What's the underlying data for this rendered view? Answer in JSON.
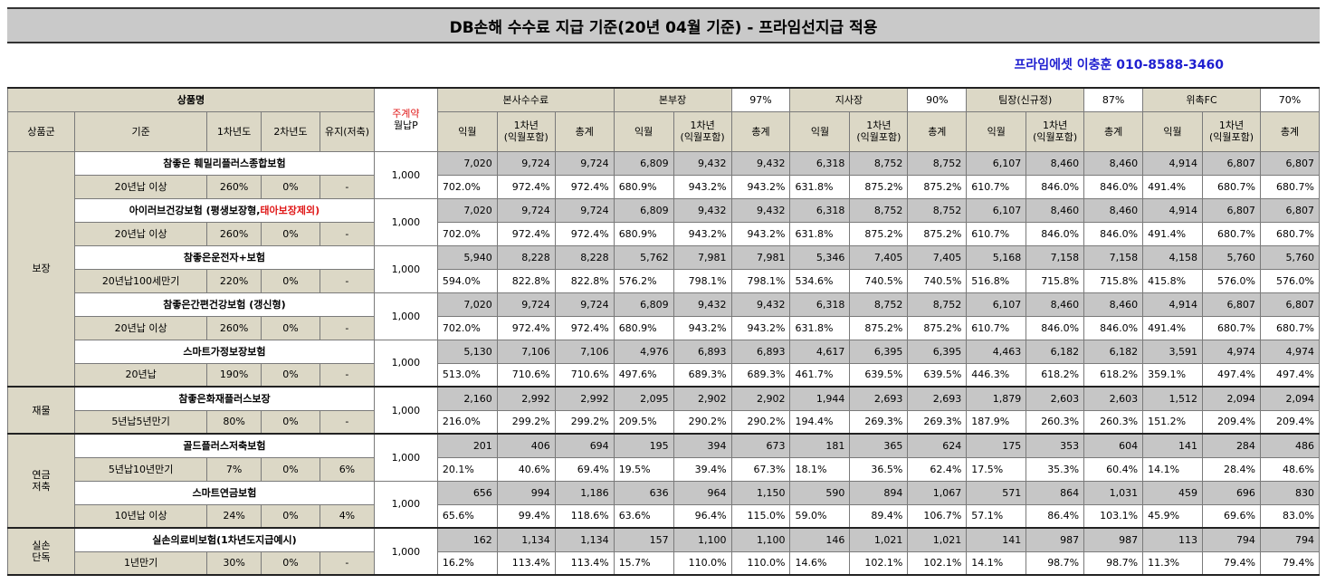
{
  "title": "DB손해 수수료 지급 기준(20년 04월 기준) - 프라임선지급 적용",
  "contact": "프라임에셋 이충훈 010-8588-3460",
  "header": {
    "product_name": "상품명",
    "group": "상품군",
    "basis": "기준",
    "y1": "1차년도",
    "y2": "2차년도",
    "keep": "유지(저축)",
    "premium_line1": "주계약",
    "premium_line2": "월납P",
    "tiers": [
      {
        "name": "본사수수료",
        "rate": ""
      },
      {
        "name": "본부장",
        "rate": "97%"
      },
      {
        "name": "지사장",
        "rate": "90%"
      },
      {
        "name": "팀장(신규정)",
        "rate": "87%"
      },
      {
        "name": "위촉FC",
        "rate": "70%"
      }
    ],
    "sub_next": "익월",
    "sub_y1_line1": "1차년",
    "sub_y1_line2": "(익월포함)",
    "sub_total": "총계"
  },
  "groups": [
    {
      "name": "보장",
      "products": [
        {
          "name": "참좋은 훼밀리플러스종합보험",
          "name_extra": "",
          "basis": "20년납 이상",
          "y1": "260%",
          "y2": "0%",
          "keep": "-",
          "premium": "1,000",
          "values": [
            "7,020",
            "9,724",
            "9,724",
            "6,809",
            "9,432",
            "9,432",
            "6,318",
            "8,752",
            "8,752",
            "6,107",
            "8,460",
            "8,460",
            "4,914",
            "6,807",
            "6,807"
          ],
          "rates": [
            "702.0%",
            "972.4%",
            "972.4%",
            "680.9%",
            "943.2%",
            "943.2%",
            "631.8%",
            "875.2%",
            "875.2%",
            "610.7%",
            "846.0%",
            "846.0%",
            "491.4%",
            "680.7%",
            "680.7%"
          ]
        },
        {
          "name": "아이러브건강보험 (평생보장형,",
          "name_extra": "태아보장제외)",
          "basis": "20년납 이상",
          "y1": "260%",
          "y2": "0%",
          "keep": "-",
          "premium": "1,000",
          "values": [
            "7,020",
            "9,724",
            "9,724",
            "6,809",
            "9,432",
            "9,432",
            "6,318",
            "8,752",
            "8,752",
            "6,107",
            "8,460",
            "8,460",
            "4,914",
            "6,807",
            "6,807"
          ],
          "rates": [
            "702.0%",
            "972.4%",
            "972.4%",
            "680.9%",
            "943.2%",
            "943.2%",
            "631.8%",
            "875.2%",
            "875.2%",
            "610.7%",
            "846.0%",
            "846.0%",
            "491.4%",
            "680.7%",
            "680.7%"
          ]
        },
        {
          "name": "참좋은운전자+보험",
          "name_extra": "",
          "basis": "20년납100세만기",
          "y1": "220%",
          "y2": "0%",
          "keep": "-",
          "premium": "1,000",
          "values": [
            "5,940",
            "8,228",
            "8,228",
            "5,762",
            "7,981",
            "7,981",
            "5,346",
            "7,405",
            "7,405",
            "5,168",
            "7,158",
            "7,158",
            "4,158",
            "5,760",
            "5,760"
          ],
          "rates": [
            "594.0%",
            "822.8%",
            "822.8%",
            "576.2%",
            "798.1%",
            "798.1%",
            "534.6%",
            "740.5%",
            "740.5%",
            "516.8%",
            "715.8%",
            "715.8%",
            "415.8%",
            "576.0%",
            "576.0%"
          ]
        },
        {
          "name": "참좋은간편건강보험 (갱신형)",
          "name_extra": "",
          "basis": "20년납 이상",
          "y1": "260%",
          "y2": "0%",
          "keep": "-",
          "premium": "1,000",
          "values": [
            "7,020",
            "9,724",
            "9,724",
            "6,809",
            "9,432",
            "9,432",
            "6,318",
            "8,752",
            "8,752",
            "6,107",
            "8,460",
            "8,460",
            "4,914",
            "6,807",
            "6,807"
          ],
          "rates": [
            "702.0%",
            "972.4%",
            "972.4%",
            "680.9%",
            "943.2%",
            "943.2%",
            "631.8%",
            "875.2%",
            "875.2%",
            "610.7%",
            "846.0%",
            "846.0%",
            "491.4%",
            "680.7%",
            "680.7%"
          ]
        },
        {
          "name": "스마트가정보장보험",
          "name_extra": "",
          "basis": "20년납",
          "y1": "190%",
          "y2": "0%",
          "keep": "-",
          "premium": "1,000",
          "values": [
            "5,130",
            "7,106",
            "7,106",
            "4,976",
            "6,893",
            "6,893",
            "4,617",
            "6,395",
            "6,395",
            "4,463",
            "6,182",
            "6,182",
            "3,591",
            "4,974",
            "4,974"
          ],
          "rates": [
            "513.0%",
            "710.6%",
            "710.6%",
            "497.6%",
            "689.3%",
            "689.3%",
            "461.7%",
            "639.5%",
            "639.5%",
            "446.3%",
            "618.2%",
            "618.2%",
            "359.1%",
            "497.4%",
            "497.4%"
          ]
        }
      ]
    },
    {
      "name": "재물",
      "products": [
        {
          "name": "참좋은화재플러스보장",
          "name_extra": "",
          "basis": "5년납5년만기",
          "y1": "80%",
          "y2": "0%",
          "keep": "-",
          "premium": "1,000",
          "values": [
            "2,160",
            "2,992",
            "2,992",
            "2,095",
            "2,902",
            "2,902",
            "1,944",
            "2,693",
            "2,693",
            "1,879",
            "2,603",
            "2,603",
            "1,512",
            "2,094",
            "2,094"
          ],
          "rates": [
            "216.0%",
            "299.2%",
            "299.2%",
            "209.5%",
            "290.2%",
            "290.2%",
            "194.4%",
            "269.3%",
            "269.3%",
            "187.9%",
            "260.3%",
            "260.3%",
            "151.2%",
            "209.4%",
            "209.4%"
          ]
        }
      ]
    },
    {
      "name": "연금\n저축",
      "products": [
        {
          "name": "골드플러스저축보험",
          "name_extra": "",
          "basis": "5년납10년만기",
          "y1": "7%",
          "y2": "0%",
          "keep": "6%",
          "premium": "1,000",
          "values": [
            "201",
            "406",
            "694",
            "195",
            "394",
            "673",
            "181",
            "365",
            "624",
            "175",
            "353",
            "604",
            "141",
            "284",
            "486"
          ],
          "rates": [
            "20.1%",
            "40.6%",
            "69.4%",
            "19.5%",
            "39.4%",
            "67.3%",
            "18.1%",
            "36.5%",
            "62.4%",
            "17.5%",
            "35.3%",
            "60.4%",
            "14.1%",
            "28.4%",
            "48.6%"
          ]
        },
        {
          "name": "스마트연금보험",
          "name_extra": "",
          "basis": "10년납 이상",
          "y1": "24%",
          "y2": "0%",
          "keep": "4%",
          "premium": "1,000",
          "values": [
            "656",
            "994",
            "1,186",
            "636",
            "964",
            "1,150",
            "590",
            "894",
            "1,067",
            "571",
            "864",
            "1,031",
            "459",
            "696",
            "830"
          ],
          "rates": [
            "65.6%",
            "99.4%",
            "118.6%",
            "63.6%",
            "96.4%",
            "115.0%",
            "59.0%",
            "89.4%",
            "106.7%",
            "57.1%",
            "86.4%",
            "103.1%",
            "45.9%",
            "69.6%",
            "83.0%"
          ]
        }
      ]
    },
    {
      "name": "실손\n단독",
      "products": [
        {
          "name": "실손의료비보험(1차년도지급예시)",
          "name_extra": "",
          "basis": "1년만기",
          "y1": "30%",
          "y2": "0%",
          "keep": "-",
          "premium": "1,000",
          "values": [
            "162",
            "1,134",
            "1,134",
            "157",
            "1,100",
            "1,100",
            "146",
            "1,021",
            "1,021",
            "141",
            "987",
            "987",
            "113",
            "794",
            "794"
          ],
          "rates": [
            "16.2%",
            "113.4%",
            "113.4%",
            "15.7%",
            "110.0%",
            "110.0%",
            "14.6%",
            "102.1%",
            "102.1%",
            "14.1%",
            "98.7%",
            "98.7%",
            "11.3%",
            "79.4%",
            "79.4%"
          ]
        }
      ]
    }
  ]
}
